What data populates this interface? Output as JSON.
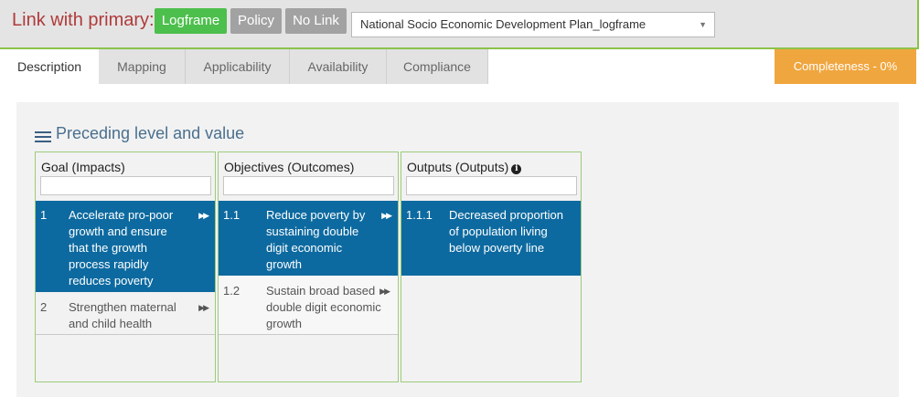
{
  "topbar": {
    "title": "Link with primary:",
    "buttons": [
      "Logframe",
      "Policy",
      "No Link"
    ],
    "dropdown_value": "National Socio Economic Development Plan_logframe"
  },
  "tabs": [
    "Description",
    "Mapping",
    "Applicability",
    "Availability",
    "Compliance"
  ],
  "completeness": "Completeness - 0%",
  "section_title": "Preceding level and value",
  "columns": [
    {
      "header": "Goal (Impacts)",
      "items": [
        {
          "num": "1",
          "text": "Accelerate pro-poor growth and ensure that the growth process rapidly reduces poverty",
          "selected": true
        },
        {
          "num": "2",
          "text": "Strengthen maternal and child health",
          "selected": false
        }
      ]
    },
    {
      "header": "Objectives (Outcomes)",
      "items": [
        {
          "num": "1.1",
          "text": "Reduce poverty by sustaining double digit economic growth",
          "selected": true
        },
        {
          "num": "1.2",
          "text": "Sustain broad based double digit economic growth",
          "selected": false
        }
      ]
    },
    {
      "header": "Outputs (Outputs)",
      "items": [
        {
          "num": "1.1.1",
          "text": "Decreased proportion of population living below poverty line",
          "selected": true
        }
      ]
    }
  ],
  "icons": {
    "menu": "hamburger-icon",
    "info": "info-icon",
    "expand": "double-arrow-right-icon",
    "dropdown": "caret-down-icon"
  },
  "colors": {
    "title": "#b03a3a",
    "logframe_active": "#4cbf4c",
    "inactive_button": "#a2a2a2",
    "selected_row": "#0d6aa0",
    "completeness": "#f0a63e",
    "accent_border": "#8bc34a"
  }
}
